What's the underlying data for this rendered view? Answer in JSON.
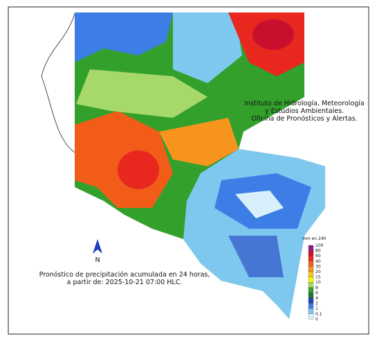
{
  "institute": {
    "lines": [
      "Instituto de Hidrología, Meteorología",
      "y Estudios Ambientales.",
      "Oficina de Pronósticos y Alertas."
    ]
  },
  "caption": {
    "lines": [
      "Pronóstico de precipitación acumulada en 24 horas,",
      "a partir de: 2025-10-21 07:00 HLC."
    ]
  },
  "north_arrow": {
    "label": "N"
  },
  "legend": {
    "title": "mm en 24h",
    "labels": [
      "100",
      "80",
      "60",
      "40",
      "30",
      "20",
      "15",
      "10",
      "8",
      "6",
      "4",
      "2",
      "1",
      "0.1",
      "0"
    ],
    "colors": [
      "#8b1a8b",
      "#c8102e",
      "#e8281e",
      "#f25c19",
      "#f7941d",
      "#f9c623",
      "#fff200",
      "#a6d96a",
      "#33a02c",
      "#1a7a2e",
      "#1f3fbf",
      "#3d7ee6",
      "#7ec8f0",
      "#d8f0fb"
    ]
  }
}
